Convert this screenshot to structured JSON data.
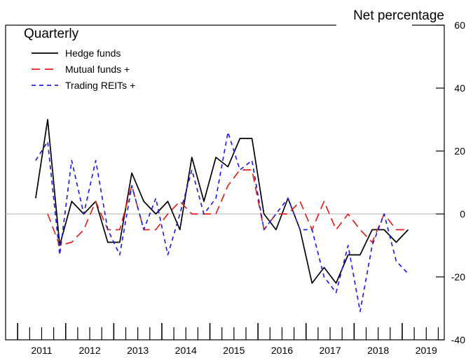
{
  "chart_data": {
    "type": "line",
    "title": "Quarterly",
    "ylabel": "Net percentage",
    "ylim": [
      -40,
      60
    ],
    "yticks": [
      60,
      40,
      20,
      0,
      -20,
      -40
    ],
    "xlim": [
      2010.75,
      2019.875
    ],
    "year_labels": [
      "2011",
      "2012",
      "2013",
      "2014",
      "2015",
      "2016",
      "2017",
      "2018",
      "2019"
    ],
    "zero_line": true,
    "legend_position": "top-left",
    "series": [
      {
        "name": "Hedge funds",
        "color": "#000000",
        "dash": "solid",
        "x": [
          2011.375,
          2011.625,
          2011.875,
          2012.125,
          2012.375,
          2012.625,
          2012.875,
          2013.125,
          2013.375,
          2013.625,
          2013.875,
          2014.125,
          2014.375,
          2014.625,
          2014.875,
          2015.125,
          2015.375,
          2015.625,
          2015.875,
          2016.125,
          2016.375,
          2016.625,
          2016.875,
          2017.125,
          2017.375,
          2017.625,
          2017.875,
          2018.125,
          2018.375,
          2018.625,
          2018.875,
          2019.125
        ],
        "values": [
          5,
          30,
          -10,
          4,
          0,
          4,
          -9,
          -9,
          13,
          4,
          0,
          4,
          -5,
          18,
          4,
          18,
          15,
          24,
          24,
          0,
          -5,
          5,
          -5,
          -22,
          -17,
          -22,
          -13,
          -13,
          -5,
          -5,
          -9,
          -5
        ]
      },
      {
        "name": "Mutual funds +",
        "color": "#dd2222",
        "dash": "long",
        "x": [
          2011.625,
          2011.875,
          2012.125,
          2012.375,
          2012.625,
          2012.875,
          2013.125,
          2013.375,
          2013.625,
          2013.875,
          2014.125,
          2014.375,
          2014.625,
          2014.875,
          2015.125,
          2015.375,
          2015.625,
          2015.875,
          2016.125,
          2016.375,
          2016.625,
          2016.875,
          2017.125,
          2017.375,
          2017.625,
          2017.875,
          2018.125,
          2018.375,
          2018.625,
          2018.875,
          2019.125
        ],
        "values": [
          0,
          -10,
          -9,
          -5,
          4,
          -5,
          -5,
          9,
          -5,
          -5,
          0,
          4,
          0,
          0,
          0,
          9,
          14,
          14,
          -5,
          0,
          0,
          4,
          -5,
          4,
          -5,
          0,
          -5,
          -9,
          0,
          -5,
          -5
        ]
      },
      {
        "name": "Trading REITs +",
        "color": "#2222dd",
        "dash": "short",
        "x": [
          2011.375,
          2011.625,
          2011.875,
          2012.125,
          2012.375,
          2012.625,
          2012.875,
          2013.125,
          2013.375,
          2013.625,
          2013.875,
          2014.125,
          2014.375,
          2014.625,
          2014.875,
          2015.125,
          2015.375,
          2015.625,
          2015.875,
          2016.125,
          2016.375,
          2016.625,
          2016.875,
          2017.125,
          2017.375,
          2017.625,
          2017.875,
          2018.125,
          2018.375,
          2018.625,
          2018.875,
          2019.125
        ],
        "values": [
          17,
          23,
          -13,
          17,
          0,
          17,
          -5,
          -13,
          9,
          -5,
          5,
          -13,
          0,
          14,
          0,
          5,
          26,
          14,
          17,
          -5,
          0,
          5,
          -5,
          -5,
          -20,
          -25,
          -10,
          -31,
          -10,
          0,
          -15,
          -19
        ]
      }
    ]
  }
}
